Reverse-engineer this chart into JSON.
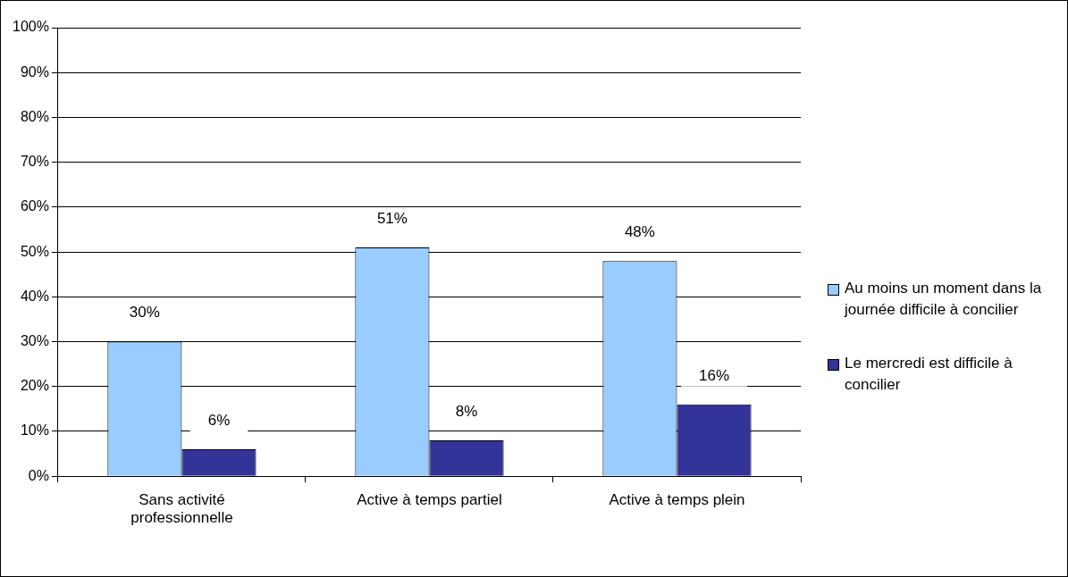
{
  "chart_data": {
    "type": "bar",
    "categories": [
      "Sans activité professionnelle",
      "Active à temps partiel",
      "Active à temps plein"
    ],
    "series": [
      {
        "name": "Au moins un moment dans la journée difficile à concilier",
        "color": "#99ccff",
        "values": [
          30,
          51,
          48
        ]
      },
      {
        "name": "Le mercredi est difficile à concilier",
        "color": "#333399",
        "values": [
          6,
          8,
          16
        ]
      }
    ],
    "ylim": [
      0,
      100
    ],
    "yticks": [
      {
        "value": 0,
        "label": "0%"
      },
      {
        "value": 10,
        "label": "10%"
      },
      {
        "value": 20,
        "label": "20%"
      },
      {
        "value": 30,
        "label": "30%"
      },
      {
        "value": 40,
        "label": "40%"
      },
      {
        "value": 50,
        "label": "50%"
      },
      {
        "value": 60,
        "label": "60%"
      },
      {
        "value": 70,
        "label": "70%"
      },
      {
        "value": 80,
        "label": "80%"
      },
      {
        "value": 90,
        "label": "90%"
      },
      {
        "value": 100,
        "label": "100%"
      }
    ],
    "value_labels": [
      [
        "30%",
        "51%",
        "48%"
      ],
      [
        "6%",
        "8%",
        "16%"
      ]
    ],
    "grid": "y",
    "legend": "right"
  }
}
